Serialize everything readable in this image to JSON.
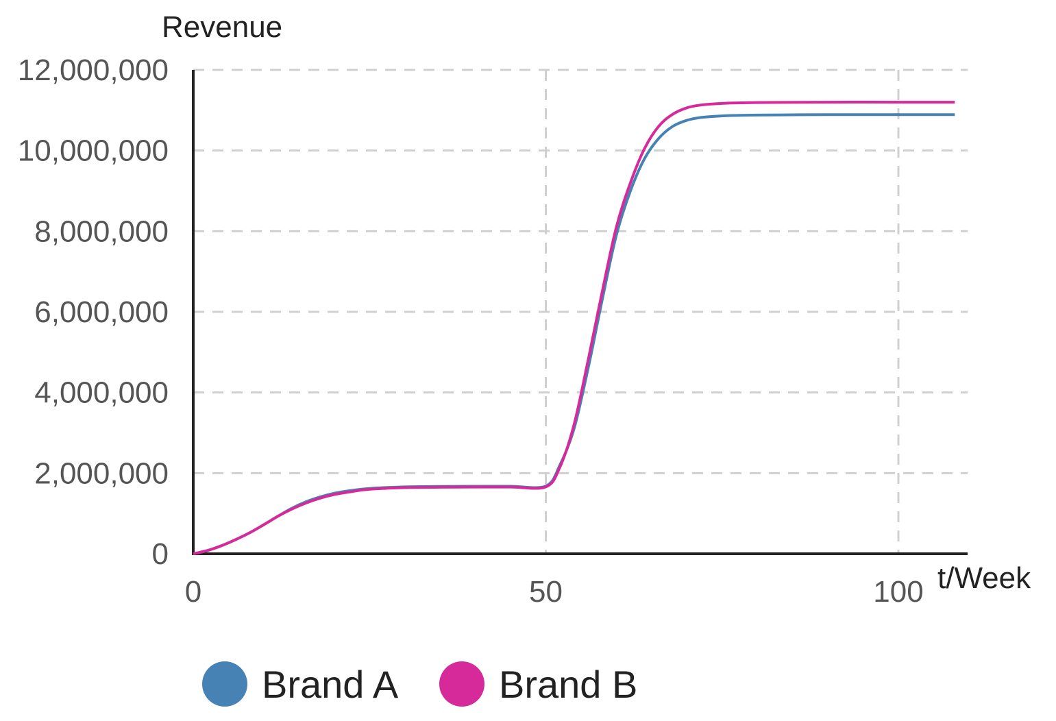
{
  "chart_data": {
    "type": "line",
    "title": "",
    "ylabel": "Revenue",
    "xlabel": "t/Week",
    "xlim": [
      0,
      110
    ],
    "ylim": [
      0,
      12000000
    ],
    "x_ticks": [
      0,
      50,
      100
    ],
    "x_tick_labels": [
      "0",
      "50",
      "100"
    ],
    "y_ticks": [
      0,
      2000000,
      4000000,
      6000000,
      8000000,
      10000000,
      12000000
    ],
    "y_tick_labels": [
      "0",
      "2,000,000",
      "4,000,000",
      "6,000,000",
      "8,000,000",
      "10,000,000",
      "12,000,000"
    ],
    "grid": true,
    "legend_position": "bottom-left",
    "series": [
      {
        "name": "Brand A",
        "color": "#4682B4",
        "x": [
          0,
          2,
          4,
          6,
          8,
          10,
          12,
          14,
          16,
          18,
          20,
          22,
          25,
          30,
          35,
          40,
          45,
          50,
          52,
          54,
          56,
          58,
          60,
          62,
          64,
          66,
          68,
          70,
          72,
          75,
          80,
          90,
          100,
          108
        ],
        "y": [
          0,
          80000,
          200000,
          350000,
          520000,
          720000,
          930000,
          1130000,
          1290000,
          1410000,
          1500000,
          1560000,
          1620000,
          1660000,
          1670000,
          1675000,
          1675000,
          1680000,
          2200000,
          3100000,
          4600000,
          6300000,
          7900000,
          9000000,
          9800000,
          10300000,
          10600000,
          10750000,
          10820000,
          10860000,
          10880000,
          10890000,
          10890000,
          10890000
        ]
      },
      {
        "name": "Brand B",
        "color": "#D62A9B",
        "x": [
          0,
          2,
          4,
          6,
          8,
          10,
          12,
          14,
          16,
          18,
          20,
          22,
          25,
          30,
          35,
          40,
          45,
          50,
          52,
          54,
          56,
          58,
          60,
          62,
          64,
          66,
          68,
          70,
          72,
          75,
          80,
          90,
          100,
          108
        ],
        "y": [
          0,
          80000,
          200000,
          350000,
          520000,
          720000,
          930000,
          1110000,
          1260000,
          1380000,
          1470000,
          1530000,
          1600000,
          1640000,
          1650000,
          1655000,
          1655000,
          1660000,
          2150000,
          3200000,
          4800000,
          6500000,
          8100000,
          9200000,
          10050000,
          10600000,
          10900000,
          11060000,
          11130000,
          11170000,
          11190000,
          11200000,
          11200000,
          11200000
        ]
      }
    ]
  }
}
